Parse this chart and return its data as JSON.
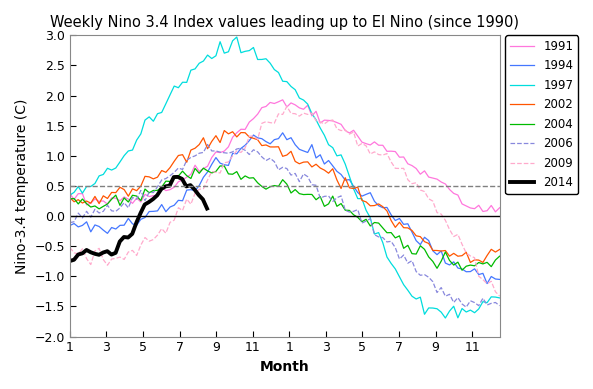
{
  "title": "Weekly Nino 3.4 Index values leading up to El Nino (since 1990)",
  "xlabel": "Month",
  "ylabel": "Nino-3.4 temperature (C)",
  "ylim": [
    -2,
    3
  ],
  "xlim": [
    1,
    24.5
  ],
  "xticks": [
    1,
    3,
    5,
    7,
    9,
    11,
    13,
    15,
    17,
    19,
    21,
    23
  ],
  "xticklabels": [
    "1",
    "3",
    "5",
    "7",
    "9",
    "11",
    "1",
    "3",
    "5",
    "7",
    "9",
    "11"
  ],
  "dashed_line_y": 0.5,
  "series": [
    {
      "label": "1991",
      "color": "#FF77DD",
      "linestyle": "-",
      "linewidth": 0.9,
      "x_start": 1,
      "x_end": 24.5,
      "n": 104
    },
    {
      "label": "1994",
      "color": "#4477FF",
      "linestyle": "-",
      "linewidth": 0.9,
      "x_start": 1,
      "x_end": 24.5,
      "n": 104
    },
    {
      "label": "1997",
      "color": "#00DDDD",
      "linestyle": "-",
      "linewidth": 0.9,
      "x_start": 1,
      "x_end": 24.5,
      "n": 104
    },
    {
      "label": "2002",
      "color": "#FF5500",
      "linestyle": "-",
      "linewidth": 0.9,
      "x_start": 1,
      "x_end": 24.5,
      "n": 104
    },
    {
      "label": "2004",
      "color": "#00BB00",
      "linestyle": "-",
      "linewidth": 0.9,
      "x_start": 1,
      "x_end": 24.5,
      "n": 104
    },
    {
      "label": "2006",
      "color": "#8888DD",
      "linestyle": "--",
      "linewidth": 0.9,
      "x_start": 1,
      "x_end": 24.5,
      "n": 104
    },
    {
      "label": "2009",
      "color": "#FFAACC",
      "linestyle": "--",
      "linewidth": 0.9,
      "x_start": 1,
      "x_end": 24.5,
      "n": 104
    },
    {
      "label": "2014",
      "color": "#000000",
      "linestyle": "-",
      "linewidth": 2.8,
      "x_start": 1,
      "x_end": 8.5,
      "n": 34
    }
  ],
  "background_color": "#ffffff",
  "title_fontsize": 10.5,
  "axis_label_fontsize": 10,
  "tick_fontsize": 9
}
